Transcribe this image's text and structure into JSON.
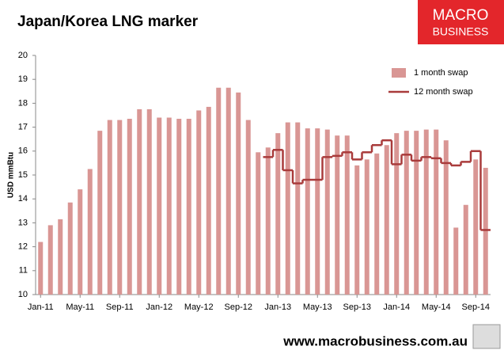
{
  "chart_data": {
    "type": "bar",
    "title": "Japan/Korea LNG marker",
    "y_label": "USD mmBtu",
    "categories": [
      "Jan-11",
      null,
      null,
      null,
      "May-11",
      null,
      null,
      null,
      "Sep-11",
      null,
      null,
      null,
      "Jan-12",
      null,
      null,
      null,
      "May-12",
      null,
      null,
      null,
      "Sep-12",
      null,
      null,
      null,
      "Jan-13",
      null,
      null,
      null,
      "May-13",
      null,
      null,
      null,
      "Sep-13",
      null,
      null,
      null,
      "Jan-14",
      null,
      null,
      null,
      "May-14",
      null,
      null,
      null,
      "Sep-14",
      null
    ],
    "series": [
      {
        "name": "1 month swap",
        "type": "bar",
        "color": "#d99694",
        "values": [
          12.2,
          12.9,
          13.15,
          13.85,
          14.4,
          15.25,
          16.85,
          17.3,
          17.3,
          17.35,
          17.75,
          17.75,
          17.4,
          17.4,
          17.35,
          17.35,
          17.7,
          17.85,
          18.65,
          18.65,
          18.45,
          17.3,
          15.95,
          16.15,
          16.75,
          17.2,
          17.2,
          16.95,
          16.95,
          16.9,
          16.65,
          16.65,
          15.4,
          15.65,
          15.9,
          16.25,
          16.75,
          16.85,
          16.85,
          16.9,
          16.9,
          16.45,
          12.8,
          13.75,
          15.65,
          15.3
        ]
      },
      {
        "name": "12 month swap",
        "type": "line",
        "color": "#a93b3b",
        "values": [
          null,
          null,
          null,
          null,
          null,
          null,
          null,
          null,
          null,
          null,
          null,
          null,
          null,
          null,
          null,
          null,
          null,
          null,
          null,
          null,
          null,
          null,
          null,
          15.75,
          16.05,
          15.2,
          14.65,
          14.8,
          14.8,
          15.75,
          15.8,
          15.95,
          15.65,
          15.95,
          16.25,
          16.45,
          15.45,
          15.85,
          15.6,
          15.75,
          15.7,
          15.5,
          15.4,
          15.55,
          16.0,
          12.7
        ]
      }
    ],
    "ylim": [
      10,
      20
    ],
    "yticks": [
      10,
      11,
      12,
      13,
      14,
      15,
      16,
      17,
      18,
      19,
      20
    ],
    "grid": false,
    "legend": "top-right"
  },
  "logo": {
    "line1": "MACRO",
    "line2": "BUSINESS"
  },
  "footer": "www.macrobusiness.com.au"
}
